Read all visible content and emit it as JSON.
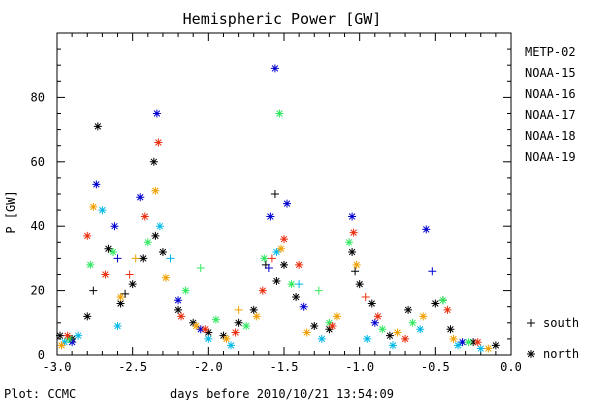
{
  "chart_data": {
    "type": "scatter",
    "title": "Hemispheric Power [GW]",
    "xlabel": "days before 2010/10/21 13:54:09",
    "ylabel": "P [GW]",
    "xlim": [
      -3.0,
      0.0
    ],
    "ylim": [
      0,
      100
    ],
    "xticks": [
      -3.0,
      -2.5,
      -2.0,
      -1.5,
      -1.0,
      -0.5,
      0.0
    ],
    "xtick_labels": [
      "-3.0",
      "-2.5",
      "-2.0",
      "-1.5",
      "-1.0",
      "-0.5",
      "0.0"
    ],
    "yticks": [
      0,
      20,
      40,
      60,
      80
    ],
    "ytick_labels": [
      "0",
      "20",
      "40",
      "60",
      "80"
    ],
    "grid": false,
    "legend_position": "right",
    "footer": "Plot: CCMC",
    "marker_legend": [
      {
        "marker": "plus",
        "label": "south"
      },
      {
        "marker": "asterisk",
        "label": "north"
      }
    ],
    "series": [
      {
        "name": "METP-02",
        "color": "#000000",
        "points": [
          {
            "x": -2.98,
            "y": 6,
            "m": "star"
          },
          {
            "x": -2.9,
            "y": 5,
            "m": "star"
          },
          {
            "x": -2.8,
            "y": 12,
            "m": "star"
          },
          {
            "x": -2.73,
            "y": 71,
            "m": "star"
          },
          {
            "x": -2.66,
            "y": 33,
            "m": "star"
          },
          {
            "x": -2.58,
            "y": 16,
            "m": "star"
          },
          {
            "x": -2.5,
            "y": 22,
            "m": "star"
          },
          {
            "x": -2.43,
            "y": 30,
            "m": "star"
          },
          {
            "x": -2.36,
            "y": 60,
            "m": "star"
          },
          {
            "x": -2.35,
            "y": 37,
            "m": "star"
          },
          {
            "x": -2.3,
            "y": 32,
            "m": "star"
          },
          {
            "x": -2.2,
            "y": 14,
            "m": "star"
          },
          {
            "x": -2.1,
            "y": 10,
            "m": "star"
          },
          {
            "x": -2.0,
            "y": 7,
            "m": "star"
          },
          {
            "x": -1.9,
            "y": 6,
            "m": "star"
          },
          {
            "x": -1.8,
            "y": 10,
            "m": "star"
          },
          {
            "x": -1.7,
            "y": 14,
            "m": "star"
          },
          {
            "x": -1.55,
            "y": 23,
            "m": "star"
          },
          {
            "x": -1.5,
            "y": 28,
            "m": "star"
          },
          {
            "x": -1.42,
            "y": 18,
            "m": "star"
          },
          {
            "x": -1.3,
            "y": 9,
            "m": "star"
          },
          {
            "x": -1.2,
            "y": 8,
            "m": "star"
          },
          {
            "x": -1.05,
            "y": 32,
            "m": "star"
          },
          {
            "x": -1.0,
            "y": 22,
            "m": "star"
          },
          {
            "x": -0.92,
            "y": 16,
            "m": "star"
          },
          {
            "x": -0.8,
            "y": 6,
            "m": "star"
          },
          {
            "x": -0.68,
            "y": 14,
            "m": "star"
          },
          {
            "x": -0.5,
            "y": 16,
            "m": "star"
          },
          {
            "x": -0.4,
            "y": 8,
            "m": "star"
          },
          {
            "x": -0.25,
            "y": 4,
            "m": "star"
          },
          {
            "x": -0.1,
            "y": 3,
            "m": "star"
          },
          {
            "x": -2.76,
            "y": 20,
            "m": "plus"
          },
          {
            "x": -2.55,
            "y": 19,
            "m": "plus"
          },
          {
            "x": -1.56,
            "y": 50,
            "m": "plus"
          },
          {
            "x": -1.62,
            "y": 28,
            "m": "plus"
          },
          {
            "x": -1.03,
            "y": 26,
            "m": "plus"
          },
          {
            "x": -0.45,
            "y": 17,
            "m": "plus"
          }
        ]
      },
      {
        "name": "NOAA-15",
        "color": "#0000d0",
        "points": [
          {
            "x": -2.74,
            "y": 53,
            "m": "star"
          },
          {
            "x": -2.45,
            "y": 49,
            "m": "star"
          },
          {
            "x": -2.62,
            "y": 40,
            "m": "star"
          },
          {
            "x": -2.34,
            "y": 75,
            "m": "star"
          },
          {
            "x": -2.2,
            "y": 17,
            "m": "star"
          },
          {
            "x": -1.59,
            "y": 43,
            "m": "star"
          },
          {
            "x": -1.56,
            "y": 89,
            "m": "star"
          },
          {
            "x": -1.48,
            "y": 47,
            "m": "star"
          },
          {
            "x": -1.37,
            "y": 15,
            "m": "star"
          },
          {
            "x": -1.05,
            "y": 43,
            "m": "star"
          },
          {
            "x": -0.9,
            "y": 10,
            "m": "star"
          },
          {
            "x": -0.56,
            "y": 39,
            "m": "star"
          },
          {
            "x": -0.32,
            "y": 4,
            "m": "star"
          },
          {
            "x": -2.9,
            "y": 4,
            "m": "star"
          },
          {
            "x": -2.05,
            "y": 8,
            "m": "star"
          },
          {
            "x": -1.6,
            "y": 27,
            "m": "plus"
          },
          {
            "x": -0.52,
            "y": 26,
            "m": "plus"
          },
          {
            "x": -2.6,
            "y": 30,
            "m": "plus"
          }
        ]
      },
      {
        "name": "NOAA-16",
        "color": "#00b8e8",
        "points": [
          {
            "x": -2.95,
            "y": 4,
            "m": "star"
          },
          {
            "x": -2.86,
            "y": 6,
            "m": "star"
          },
          {
            "x": -2.7,
            "y": 45,
            "m": "star"
          },
          {
            "x": -2.6,
            "y": 9,
            "m": "star"
          },
          {
            "x": -2.32,
            "y": 40,
            "m": "star"
          },
          {
            "x": -2.0,
            "y": 5,
            "m": "star"
          },
          {
            "x": -1.85,
            "y": 3,
            "m": "star"
          },
          {
            "x": -1.55,
            "y": 32,
            "m": "star"
          },
          {
            "x": -1.25,
            "y": 5,
            "m": "star"
          },
          {
            "x": -0.95,
            "y": 5,
            "m": "star"
          },
          {
            "x": -0.78,
            "y": 3,
            "m": "star"
          },
          {
            "x": -0.6,
            "y": 8,
            "m": "star"
          },
          {
            "x": -0.35,
            "y": 3,
            "m": "star"
          },
          {
            "x": -0.2,
            "y": 2,
            "m": "star"
          },
          {
            "x": -2.25,
            "y": 30,
            "m": "plus"
          },
          {
            "x": -1.4,
            "y": 22,
            "m": "plus"
          }
        ]
      },
      {
        "name": "NOAA-17",
        "color": "#30e860",
        "points": [
          {
            "x": -2.92,
            "y": 5,
            "m": "star"
          },
          {
            "x": -2.78,
            "y": 28,
            "m": "star"
          },
          {
            "x": -2.63,
            "y": 32,
            "m": "star"
          },
          {
            "x": -2.4,
            "y": 35,
            "m": "star"
          },
          {
            "x": -2.15,
            "y": 20,
            "m": "star"
          },
          {
            "x": -1.95,
            "y": 11,
            "m": "star"
          },
          {
            "x": -1.75,
            "y": 9,
            "m": "star"
          },
          {
            "x": -1.63,
            "y": 30,
            "m": "star"
          },
          {
            "x": -1.53,
            "y": 75,
            "m": "star"
          },
          {
            "x": -1.45,
            "y": 22,
            "m": "star"
          },
          {
            "x": -1.2,
            "y": 10,
            "m": "star"
          },
          {
            "x": -1.07,
            "y": 35,
            "m": "star"
          },
          {
            "x": -0.85,
            "y": 8,
            "m": "star"
          },
          {
            "x": -0.65,
            "y": 10,
            "m": "star"
          },
          {
            "x": -0.45,
            "y": 17,
            "m": "star"
          },
          {
            "x": -0.28,
            "y": 4,
            "m": "star"
          },
          {
            "x": -2.05,
            "y": 27,
            "m": "plus"
          },
          {
            "x": -1.27,
            "y": 20,
            "m": "plus"
          }
        ]
      },
      {
        "name": "NOAA-18",
        "color": "#f0a000",
        "points": [
          {
            "x": -2.97,
            "y": 3,
            "m": "star"
          },
          {
            "x": -2.76,
            "y": 46,
            "m": "star"
          },
          {
            "x": -2.58,
            "y": 18,
            "m": "star"
          },
          {
            "x": -2.35,
            "y": 51,
            "m": "star"
          },
          {
            "x": -2.28,
            "y": 24,
            "m": "star"
          },
          {
            "x": -2.08,
            "y": 9,
            "m": "star"
          },
          {
            "x": -1.88,
            "y": 5,
            "m": "star"
          },
          {
            "x": -1.68,
            "y": 12,
            "m": "star"
          },
          {
            "x": -1.52,
            "y": 33,
            "m": "star"
          },
          {
            "x": -1.35,
            "y": 7,
            "m": "star"
          },
          {
            "x": -1.15,
            "y": 12,
            "m": "star"
          },
          {
            "x": -1.02,
            "y": 28,
            "m": "star"
          },
          {
            "x": -0.75,
            "y": 7,
            "m": "star"
          },
          {
            "x": -0.58,
            "y": 12,
            "m": "star"
          },
          {
            "x": -0.38,
            "y": 5,
            "m": "star"
          },
          {
            "x": -0.15,
            "y": 2,
            "m": "star"
          },
          {
            "x": -2.48,
            "y": 30,
            "m": "plus"
          },
          {
            "x": -1.8,
            "y": 14,
            "m": "plus"
          }
        ]
      },
      {
        "name": "NOAA-19",
        "color": "#e83010",
        "points": [
          {
            "x": -2.93,
            "y": 6,
            "m": "star"
          },
          {
            "x": -2.8,
            "y": 37,
            "m": "star"
          },
          {
            "x": -2.68,
            "y": 25,
            "m": "star"
          },
          {
            "x": -2.42,
            "y": 43,
            "m": "star"
          },
          {
            "x": -2.33,
            "y": 66,
            "m": "star"
          },
          {
            "x": -2.18,
            "y": 12,
            "m": "star"
          },
          {
            "x": -2.02,
            "y": 8,
            "m": "star"
          },
          {
            "x": -1.82,
            "y": 7,
            "m": "star"
          },
          {
            "x": -1.64,
            "y": 20,
            "m": "star"
          },
          {
            "x": -1.5,
            "y": 36,
            "m": "star"
          },
          {
            "x": -1.4,
            "y": 28,
            "m": "star"
          },
          {
            "x": -1.18,
            "y": 9,
            "m": "star"
          },
          {
            "x": -1.04,
            "y": 38,
            "m": "star"
          },
          {
            "x": -0.88,
            "y": 12,
            "m": "star"
          },
          {
            "x": -0.7,
            "y": 5,
            "m": "star"
          },
          {
            "x": -0.42,
            "y": 14,
            "m": "star"
          },
          {
            "x": -0.22,
            "y": 4,
            "m": "star"
          },
          {
            "x": -2.52,
            "y": 25,
            "m": "plus"
          },
          {
            "x": -1.58,
            "y": 30,
            "m": "plus"
          },
          {
            "x": -0.96,
            "y": 18,
            "m": "plus"
          }
        ]
      }
    ]
  }
}
